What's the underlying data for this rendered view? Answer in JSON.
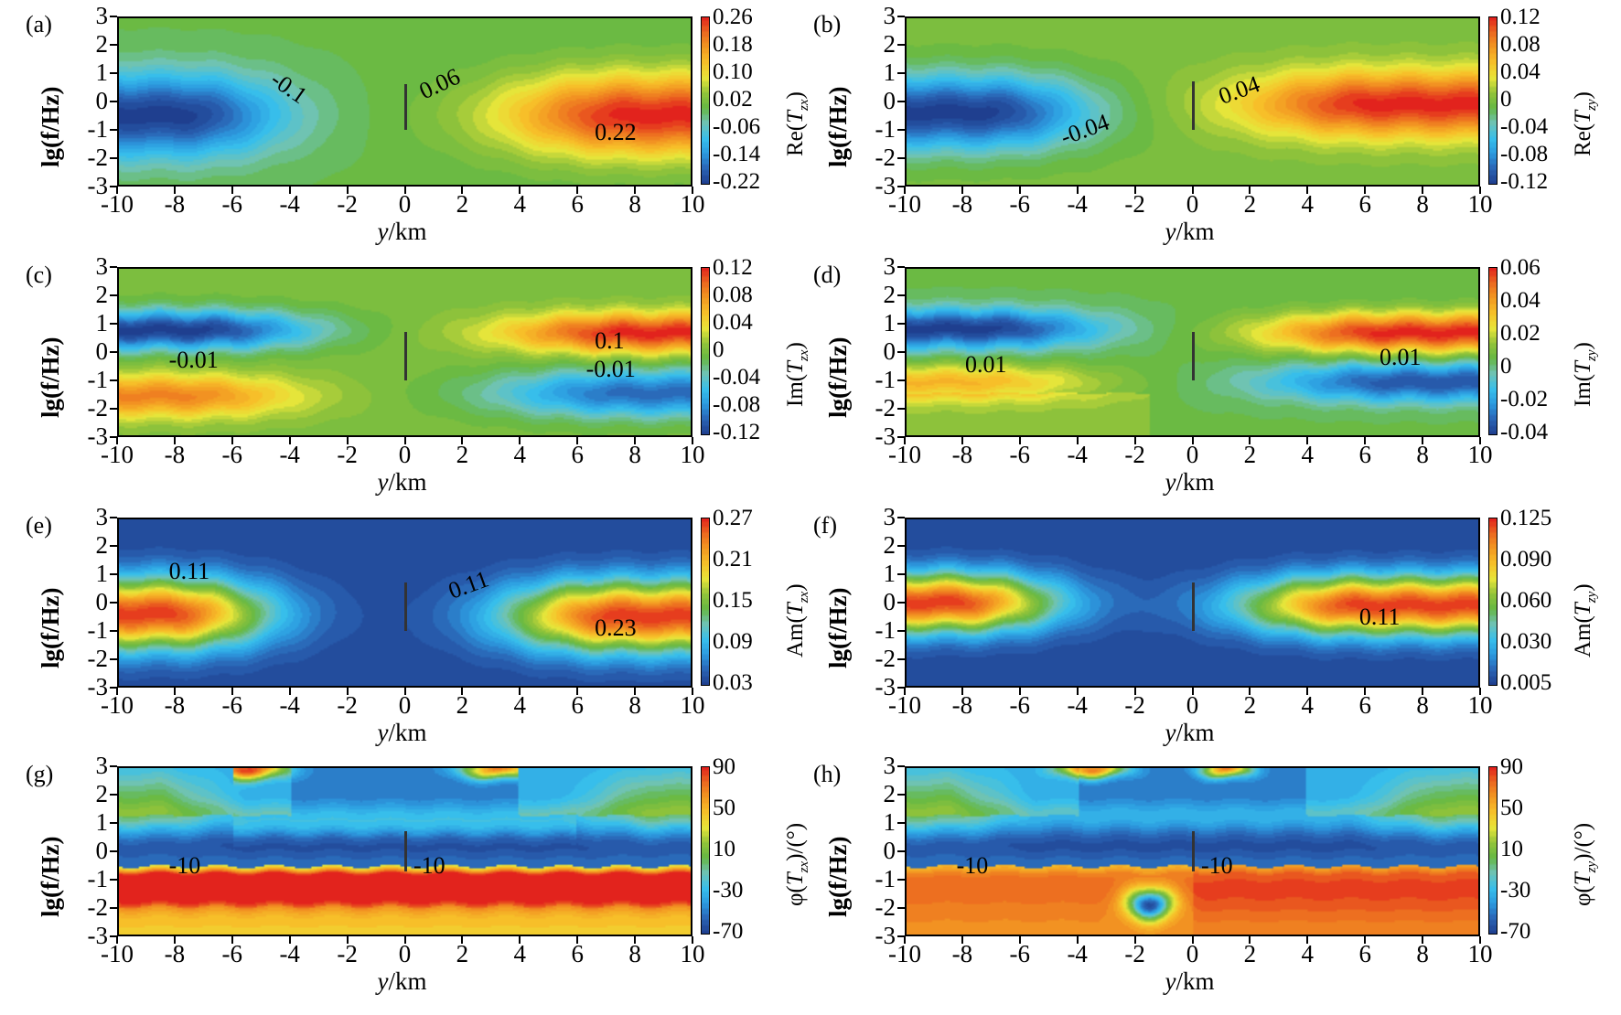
{
  "figure": {
    "colormap": [
      "#1f3f8f",
      "#2a64b5",
      "#2c9be0",
      "#38c0ec",
      "#6fc3b6",
      "#65b844",
      "#93c43a",
      "#e8e63a",
      "#f7c22a",
      "#f39a22",
      "#ec6a20",
      "#e2231d"
    ]
  },
  "chart_data": [
    {
      "id": "a",
      "type": "heatmap",
      "panel_label": "(a)",
      "xlabel_var": "y",
      "xlabel_unit": "/km",
      "ylabel": "lg(f/Hz)",
      "xlim": [
        -10,
        10
      ],
      "ylim": [
        -3,
        3
      ],
      "xticks": [
        "-10",
        "-8",
        "-6",
        "-4",
        "-2",
        "0",
        "2",
        "4",
        "6",
        "8",
        "10"
      ],
      "yticks": [
        "3",
        "2",
        "1",
        "0",
        "-1",
        "-2",
        "-3"
      ],
      "colorbar": {
        "label_prefix": "Re(",
        "label_var": "T",
        "label_sub": "zx",
        "label_suffix": ")",
        "ticks": [
          "0.26",
          "0.18",
          "0.10",
          "0.02",
          "-0.06",
          "-0.14",
          "-0.22"
        ],
        "range": [
          -0.22,
          0.26
        ]
      },
      "contour_labels": [
        {
          "text": "-0.1",
          "x": -4.0,
          "y": 0.5,
          "rotate": 35
        },
        {
          "text": "0.06",
          "x": 1.2,
          "y": 0.6,
          "rotate": -25
        },
        {
          "text": "0.22",
          "x": 7.3,
          "y": -1.1,
          "rotate": 0
        }
      ],
      "fault": {
        "x": 0,
        "y_top": 0.6,
        "y_bottom": -1.0
      },
      "description": "Negative anomaly (min about -0.22) for y<0 centered near lg f = -0.5; positive anomaly (max about 0.26) for y>0; near zero above lg f = 1"
    },
    {
      "id": "b",
      "type": "heatmap",
      "panel_label": "(b)",
      "xlabel_var": "y",
      "xlabel_unit": "/km",
      "ylabel": "lg(f/Hz)",
      "xlim": [
        -10,
        10
      ],
      "ylim": [
        -3,
        3
      ],
      "xticks": [
        "-10",
        "-8",
        "-6",
        "-4",
        "-2",
        "0",
        "2",
        "4",
        "6",
        "8",
        "10"
      ],
      "yticks": [
        "3",
        "2",
        "1",
        "0",
        "-1",
        "-2",
        "-3"
      ],
      "colorbar": {
        "label_prefix": "Re(",
        "label_var": "T",
        "label_sub": "zy",
        "label_suffix": ")",
        "ticks": [
          "0.12",
          "0.08",
          "0.04",
          "0",
          "-0.04",
          "-0.08",
          "-0.12"
        ],
        "range": [
          -0.12,
          0.12
        ]
      },
      "contour_labels": [
        {
          "text": "-0.04",
          "x": -3.9,
          "y": -1.0,
          "rotate": -20
        },
        {
          "text": "0.04",
          "x": 1.6,
          "y": 0.4,
          "rotate": -20
        }
      ],
      "fault": {
        "x": 0,
        "y_top": 0.7,
        "y_bottom": -1.0
      },
      "description": "Negative lobe (about -0.12) for y<0 centered near lg f = -0.2; positive lobe (about 0.12) for y>0"
    },
    {
      "id": "c",
      "type": "heatmap",
      "panel_label": "(c)",
      "xlabel_var": "y",
      "xlabel_unit": "/km",
      "ylabel": "lg(f/Hz)",
      "xlim": [
        -10,
        10
      ],
      "ylim": [
        -3,
        3
      ],
      "xticks": [
        "-10",
        "-8",
        "-6",
        "-4",
        "-2",
        "0",
        "2",
        "4",
        "6",
        "8",
        "10"
      ],
      "yticks": [
        "3",
        "2",
        "1",
        "0",
        "-1",
        "-2",
        "-3"
      ],
      "colorbar": {
        "label_prefix": "Im(",
        "label_var": "T",
        "label_sub": "zx",
        "label_suffix": ")",
        "ticks": [
          "0.12",
          "0.08",
          "0.04",
          "0",
          "-0.04",
          "-0.08",
          "-0.12"
        ],
        "range": [
          -0.12,
          0.12
        ]
      },
      "contour_labels": [
        {
          "text": "-0.01",
          "x": -7.5,
          "y": -0.3,
          "rotate": 0
        },
        {
          "text": "0.1",
          "x": 7.3,
          "y": 0.4,
          "rotate": 0
        },
        {
          "text": "-0.01",
          "x": 7.0,
          "y": -0.6,
          "rotate": 0
        }
      ],
      "fault": {
        "x": 0,
        "y_top": 0.7,
        "y_bottom": -1.0
      },
      "description": "Upper lobes near lg f = 0.8: negative (about -0.12) for y<0, positive (about 0.12) for y>0; lower lobes near lg f = -1.6 with opposite sign"
    },
    {
      "id": "d",
      "type": "heatmap",
      "panel_label": "(d)",
      "xlabel_var": "y",
      "xlabel_unit": "/km",
      "ylabel": "lg(f/Hz)",
      "xlim": [
        -10,
        10
      ],
      "ylim": [
        -3,
        3
      ],
      "xticks": [
        "-10",
        "-8",
        "-6",
        "-4",
        "-2",
        "0",
        "2",
        "4",
        "6",
        "8",
        "10"
      ],
      "yticks": [
        "3",
        "2",
        "1",
        "0",
        "-1",
        "-2",
        "-3"
      ],
      "colorbar": {
        "label_prefix": "Im(",
        "label_var": "T",
        "label_sub": "zy",
        "label_suffix": ")",
        "ticks": [
          "0.06",
          "0.04",
          "0.02",
          "0",
          "-0.02",
          "-0.04"
        ],
        "range": [
          -0.05,
          0.06
        ]
      },
      "contour_labels": [
        {
          "text": "0.01",
          "x": -7.2,
          "y": -0.45,
          "rotate": 0
        },
        {
          "text": "0.01",
          "x": 7.2,
          "y": -0.2,
          "rotate": 0
        }
      ],
      "fault": {
        "x": 0,
        "y_top": 0.7,
        "y_bottom": -1.0
      },
      "description": "Upper lobes near lg f = 0.8: negative for y<0, positive (about 0.06) for y>0; lower lobes near lg f = -1.1 with opposite sign"
    },
    {
      "id": "e",
      "type": "heatmap",
      "panel_label": "(e)",
      "xlabel_var": "y",
      "xlabel_unit": "/km",
      "ylabel": "lg(f/Hz)",
      "xlim": [
        -10,
        10
      ],
      "ylim": [
        -3,
        3
      ],
      "xticks": [
        "-10",
        "-8",
        "-6",
        "-4",
        "-2",
        "0",
        "2",
        "4",
        "6",
        "8",
        "10"
      ],
      "yticks": [
        "3",
        "2",
        "1",
        "0",
        "-1",
        "-2",
        "-3"
      ],
      "colorbar": {
        "label_prefix": "Am(",
        "label_var": "T",
        "label_sub": "zx",
        "label_suffix": ")",
        "ticks": [
          "0.27",
          "0.21",
          "0.15",
          "0.09",
          "0.03"
        ],
        "range": [
          0.0,
          0.27
        ]
      },
      "contour_labels": [
        {
          "text": "0.11",
          "x": -7.5,
          "y": 1.1,
          "rotate": 0
        },
        {
          "text": "0.11",
          "x": 2.2,
          "y": 0.6,
          "rotate": -20
        },
        {
          "text": "0.23",
          "x": 7.3,
          "y": -0.9,
          "rotate": 0
        }
      ],
      "fault": {
        "x": 0,
        "y_top": 0.7,
        "y_bottom": -1.0
      },
      "description": "Amplitude maxima (about 0.27) on both sides of y=0 near lg f = -0.5; minimum near y=0 and at high/low frequencies"
    },
    {
      "id": "f",
      "type": "heatmap",
      "panel_label": "(f)",
      "xlabel_var": "y",
      "xlabel_unit": "/km",
      "ylabel": "lg(f/Hz)",
      "xlim": [
        -10,
        10
      ],
      "ylim": [
        -3,
        3
      ],
      "xticks": [
        "-10",
        "-8",
        "-6",
        "-4",
        "-2",
        "0",
        "2",
        "4",
        "6",
        "8",
        "10"
      ],
      "yticks": [
        "3",
        "2",
        "1",
        "0",
        "-1",
        "-2",
        "-3"
      ],
      "colorbar": {
        "label_prefix": "Am(",
        "label_var": "T",
        "label_sub": "zy",
        "label_suffix": ")",
        "ticks": [
          "0.125",
          "0.090",
          "0.060",
          "0.030",
          "0.005"
        ],
        "range": [
          0.0,
          0.125
        ]
      },
      "contour_labels": [
        {
          "text": "0.11",
          "x": 6.5,
          "y": -0.5,
          "rotate": 0
        }
      ],
      "fault": {
        "x": 0,
        "y_top": 0.7,
        "y_bottom": -1.0
      },
      "description": "Amplitude maxima (about 0.125) on both sides of y=0 near lg f = 0; minimum near y=0"
    },
    {
      "id": "g",
      "type": "heatmap",
      "panel_label": "(g)",
      "xlabel_var": "y",
      "xlabel_unit": "/km",
      "ylabel": "lg(f/Hz)",
      "xlim": [
        -10,
        10
      ],
      "ylim": [
        -3,
        3
      ],
      "xticks": [
        "-10",
        "-8",
        "-6",
        "-4",
        "-2",
        "0",
        "2",
        "4",
        "6",
        "8",
        "10"
      ],
      "yticks": [
        "3",
        "2",
        "1",
        "0",
        "-1",
        "-2",
        "-3"
      ],
      "colorbar": {
        "label_prefix": "φ(",
        "label_var": "T",
        "label_sub": "zx",
        "label_suffix": ")/(°)",
        "ticks": [
          "90",
          "50",
          "10",
          "-30",
          "-70"
        ],
        "range": [
          -90,
          90
        ]
      },
      "contour_labels": [
        {
          "text": "-10",
          "x": -7.5,
          "y": -0.5,
          "rotate": 0
        },
        {
          "text": "-10",
          "x": 1.0,
          "y": -0.5,
          "rotate": 0
        }
      ],
      "fault": {
        "x": 0,
        "y_top": 0.7,
        "y_bottom": -0.7
      },
      "description": "Phase around -70 to -90 deg for lg f between -0.5 and 2; positive phase (50-90 deg) for lg f below -0.8; warm patches at top near y=-5 and y=3.5"
    },
    {
      "id": "h",
      "type": "heatmap",
      "panel_label": "(h)",
      "xlabel_var": "y",
      "xlabel_unit": "/km",
      "ylabel": "lg(f/Hz)",
      "xlim": [
        -10,
        10
      ],
      "ylim": [
        -3,
        3
      ],
      "xticks": [
        "-10",
        "-8",
        "-6",
        "-4",
        "-2",
        "0",
        "2",
        "4",
        "6",
        "8",
        "10"
      ],
      "yticks": [
        "3",
        "2",
        "1",
        "0",
        "-1",
        "-2",
        "-3"
      ],
      "colorbar": {
        "label_prefix": "φ(",
        "label_var": "T",
        "label_sub": "zy",
        "label_suffix": ")/(°)",
        "ticks": [
          "90",
          "50",
          "10",
          "-30",
          "-70"
        ],
        "range": [
          -90,
          90
        ]
      },
      "contour_labels": [
        {
          "text": "-10",
          "x": -7.5,
          "y": -0.5,
          "rotate": 0
        },
        {
          "text": "-10",
          "x": 1.0,
          "y": -0.5,
          "rotate": 0
        }
      ],
      "fault": {
        "x": 0,
        "y_top": 0.7,
        "y_bottom": -0.7
      },
      "description": "Phase around -70 to -90 deg for lg f between -0.5 and 2; positive phase below lg f = -0.8 with a local negative circular anomaly near y=-1.5, lg f=-1.9"
    }
  ]
}
